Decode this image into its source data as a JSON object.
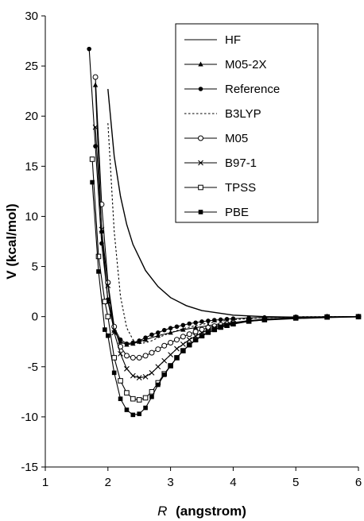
{
  "chart_data": {
    "type": "line",
    "xlabel": "(angstrom)",
    "xlabel_symbol": "R",
    "ylabel": "V (kcal/mol)",
    "xlim": [
      1,
      6
    ],
    "ylim": [
      -15,
      30
    ],
    "xticks": [
      "1",
      "2",
      "3",
      "4",
      "5",
      "6"
    ],
    "yticks": [
      "-15",
      "-10",
      "-5",
      "0",
      "5",
      "10",
      "15",
      "20",
      "25",
      "30"
    ],
    "grid": false,
    "legend_position": "top-right",
    "series": [
      {
        "name": "HF",
        "marker": "none",
        "dash": "solid",
        "color": "#000000",
        "x": [
          2.0,
          2.1,
          2.2,
          2.3,
          2.4,
          2.6,
          2.8,
          3.0,
          3.25,
          3.5,
          4.0,
          4.5,
          5.0,
          5.5,
          6.0
        ],
        "y": [
          22.7,
          16.0,
          12.0,
          9.2,
          7.2,
          4.6,
          3.0,
          1.9,
          1.1,
          0.6,
          0.15,
          0.0,
          -0.05,
          -0.05,
          -0.02
        ]
      },
      {
        "name": "M05-2X",
        "marker": "triangle",
        "dash": "solid",
        "color": "#000000",
        "x": [
          1.8,
          1.9,
          2.0,
          2.1,
          2.2,
          2.3,
          2.4,
          2.5,
          2.6,
          2.8,
          3.0,
          3.2,
          3.4,
          3.6,
          3.8,
          4.0,
          4.25,
          4.5,
          5.0,
          5.5,
          6.0
        ],
        "y": [
          23.1,
          8.5,
          1.5,
          -1.4,
          -2.5,
          -2.8,
          -2.7,
          -2.5,
          -2.3,
          -1.9,
          -1.6,
          -1.3,
          -1.1,
          -0.9,
          -0.7,
          -0.6,
          -0.45,
          -0.35,
          -0.2,
          -0.1,
          -0.03
        ]
      },
      {
        "name": "Reference",
        "marker": "dot",
        "dash": "solid",
        "color": "#000000",
        "x": [
          1.7,
          1.8,
          1.9,
          2.0,
          2.1,
          2.2,
          2.3,
          2.4,
          2.5,
          2.6,
          2.7,
          2.8,
          2.9,
          3.0,
          3.1,
          3.2,
          3.3,
          3.4,
          3.5,
          3.6,
          3.7,
          3.8,
          3.9,
          4.0,
          4.25,
          4.5,
          5.0,
          5.5,
          6.0
        ],
        "y": [
          26.7,
          17.0,
          7.3,
          1.7,
          -1.1,
          -2.3,
          -2.7,
          -2.6,
          -2.4,
          -2.1,
          -1.8,
          -1.6,
          -1.35,
          -1.15,
          -1.0,
          -0.85,
          -0.7,
          -0.6,
          -0.5,
          -0.42,
          -0.35,
          -0.3,
          -0.25,
          -0.2,
          -0.13,
          -0.08,
          -0.03,
          -0.01,
          0.0
        ]
      },
      {
        "name": "B3LYP",
        "marker": "none",
        "dash": "dotted",
        "color": "#000000",
        "x": [
          2.0,
          2.1,
          2.2,
          2.3,
          2.4,
          2.5,
          2.6,
          2.7,
          2.8,
          3.0,
          3.2,
          3.4,
          3.6,
          3.8,
          4.0,
          4.5,
          5.0,
          5.5,
          6.0
        ],
        "y": [
          19.3,
          8.5,
          2.0,
          -1.1,
          -2.3,
          -2.7,
          -2.6,
          -2.4,
          -2.1,
          -1.6,
          -1.2,
          -0.9,
          -0.65,
          -0.45,
          -0.3,
          -0.1,
          -0.02,
          0.0,
          0.0
        ]
      },
      {
        "name": "M05",
        "marker": "open-circle",
        "dash": "solid",
        "color": "#000000",
        "x": [
          1.8,
          1.9,
          2.0,
          2.1,
          2.2,
          2.3,
          2.4,
          2.5,
          2.6,
          2.7,
          2.8,
          2.9,
          3.0,
          3.1,
          3.2,
          3.3,
          3.4,
          3.5,
          3.6,
          3.7,
          3.8,
          3.9,
          4.0,
          4.25,
          4.5,
          5.0,
          5.5,
          6.0
        ],
        "y": [
          23.9,
          11.2,
          3.4,
          -1.0,
          -3.0,
          -3.9,
          -4.1,
          -4.1,
          -3.9,
          -3.6,
          -3.25,
          -2.9,
          -2.6,
          -2.3,
          -2.0,
          -1.75,
          -1.5,
          -1.3,
          -1.1,
          -0.95,
          -0.82,
          -0.7,
          -0.6,
          -0.4,
          -0.25,
          -0.08,
          -0.02,
          0.0
        ]
      },
      {
        "name": "B97-1",
        "marker": "x",
        "dash": "solid",
        "color": "#000000",
        "x": [
          1.8,
          1.9,
          2.0,
          2.1,
          2.2,
          2.3,
          2.4,
          2.5,
          2.6,
          2.7,
          2.8,
          2.9,
          3.0,
          3.1,
          3.2,
          3.3,
          3.4,
          3.5,
          3.6,
          3.7,
          3.8,
          3.9,
          4.0,
          4.25,
          4.5,
          5.0,
          5.5,
          6.0
        ],
        "y": [
          18.9,
          8.7,
          3.1,
          -1.6,
          -3.7,
          -5.2,
          -5.9,
          -6.1,
          -6.0,
          -5.6,
          -5.0,
          -4.4,
          -3.8,
          -3.2,
          -2.75,
          -2.3,
          -1.95,
          -1.6,
          -1.35,
          -1.12,
          -0.95,
          -0.8,
          -0.68,
          -0.42,
          -0.28,
          -0.1,
          -0.03,
          0.0
        ]
      },
      {
        "name": "TPSS",
        "marker": "square-open",
        "dash": "solid",
        "color": "#000000",
        "x": [
          1.75,
          1.85,
          1.95,
          2.0,
          2.1,
          2.2,
          2.3,
          2.4,
          2.5,
          2.6,
          2.7,
          2.8,
          2.9,
          3.0,
          3.1,
          3.2,
          3.3,
          3.4,
          3.5,
          3.6,
          3.7,
          3.8,
          3.9,
          4.0,
          4.25,
          4.5,
          5.0,
          5.5,
          6.0
        ],
        "y": [
          15.7,
          6.0,
          1.5,
          0.0,
          -4.1,
          -6.4,
          -7.6,
          -8.2,
          -8.3,
          -8.1,
          -7.5,
          -6.6,
          -5.7,
          -4.9,
          -4.1,
          -3.4,
          -2.8,
          -2.3,
          -1.9,
          -1.55,
          -1.28,
          -1.05,
          -0.87,
          -0.72,
          -0.45,
          -0.3,
          -0.12,
          -0.04,
          -0.01
        ]
      },
      {
        "name": "PBE",
        "marker": "square",
        "dash": "solid",
        "color": "#000000",
        "x": [
          1.75,
          1.85,
          1.95,
          2.0,
          2.1,
          2.2,
          2.3,
          2.4,
          2.5,
          2.6,
          2.7,
          2.8,
          2.9,
          3.0,
          3.1,
          3.2,
          3.3,
          3.4,
          3.5,
          3.6,
          3.7,
          3.8,
          3.9,
          4.0,
          4.25,
          4.5,
          5.0,
          5.5,
          6.0
        ],
        "y": [
          13.4,
          4.5,
          -1.3,
          -1.9,
          -5.6,
          -8.2,
          -9.3,
          -9.8,
          -9.7,
          -9.1,
          -8.0,
          -6.8,
          -5.8,
          -4.9,
          -4.1,
          -3.4,
          -2.85,
          -2.35,
          -1.95,
          -1.6,
          -1.32,
          -1.08,
          -0.9,
          -0.75,
          -0.48,
          -0.32,
          -0.13,
          -0.04,
          -0.01
        ]
      }
    ]
  }
}
